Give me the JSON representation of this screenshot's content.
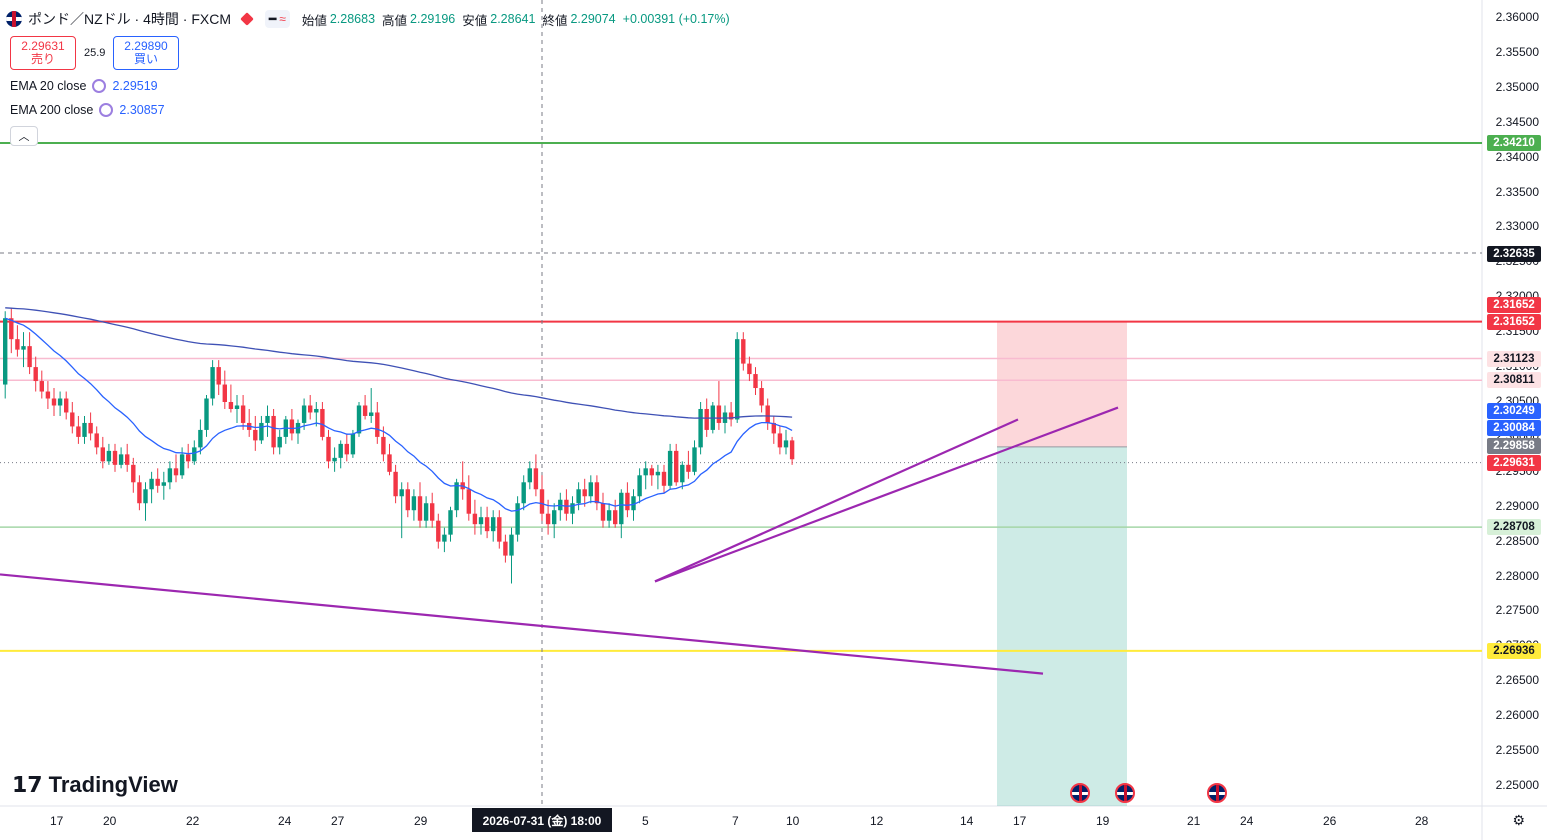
{
  "header": {
    "symbol_title": "ポンド／NZドル · 4時間 · FXCM",
    "badge_a": "━",
    "badge_b": "≈",
    "ohlc": [
      {
        "label": "始値",
        "value": "2.28683"
      },
      {
        "label": "高値",
        "value": "2.29196"
      },
      {
        "label": "安値",
        "value": "2.28641"
      },
      {
        "label": "終値",
        "value": "2.29074"
      }
    ],
    "change": "+0.00391 (+0.17%)"
  },
  "trade": {
    "sell_price": "2.29631",
    "sell_label": "売り",
    "spread": "25.9",
    "buy_price": "2.29890",
    "buy_label": "買い"
  },
  "indicators": [
    {
      "name": "EMA 20 close",
      "value": "2.29519"
    },
    {
      "name": "EMA 200 close",
      "value": "2.30857"
    }
  ],
  "logo_text": "TradingView",
  "crosshair_date": "2026-07-31 (金)   18:00",
  "colors": {
    "up": "#089981",
    "down": "#f23645",
    "ema20": "#2962ff",
    "ema200": "#3f51b5",
    "trend": "#9c27b0",
    "support": "#4caf50",
    "resistance": "#f23645",
    "yellow": "#ffeb3b"
  },
  "chart_data": {
    "type": "candlestick",
    "title": "ポンド／NZドル · 4時間 · FXCM",
    "y_range": [
      2.2475,
      2.3625
    ],
    "y_ticks": [
      "2.36000",
      "2.35500",
      "2.35000",
      "2.34500",
      "2.34000",
      "2.33500",
      "2.33000",
      "2.32500",
      "2.32000",
      "2.31500",
      "2.31000",
      "2.30500",
      "2.30000",
      "2.29500",
      "2.29000",
      "2.28500",
      "2.28000",
      "2.27500",
      "2.27000",
      "2.26500",
      "2.26000",
      "2.25500",
      "2.25000"
    ],
    "x_ticks": [
      "17",
      "20",
      "22",
      "24",
      "27",
      "29",
      "31",
      "5",
      "7",
      "10",
      "12",
      "14",
      "17",
      "19",
      "21",
      "24",
      "26",
      "28"
    ],
    "price_labels": [
      {
        "value": 2.3421,
        "text": "2.34210",
        "kind": "green"
      },
      {
        "value": 2.32635,
        "text": "2.32635",
        "kind": "dark"
      },
      {
        "value": 2.31652,
        "text": "2.31652",
        "kind": "red"
      },
      {
        "value": 2.31652,
        "text": "2.31652",
        "kind": "red"
      },
      {
        "value": 2.31123,
        "text": "2.31123",
        "kind": "pink"
      },
      {
        "value": 2.30811,
        "text": "2.30811",
        "kind": "pink"
      },
      {
        "value": 2.30249,
        "text": "2.30249",
        "kind": "blue"
      },
      {
        "value": 2.30084,
        "text": "2.30084",
        "kind": "blue"
      },
      {
        "value": 2.29858,
        "text": "2.29858",
        "kind": "gray"
      },
      {
        "value": 2.29631,
        "text": "2.29631",
        "kind": "red"
      },
      {
        "value": 2.28708,
        "text": "2.28708",
        "kind": "lightgreen"
      },
      {
        "value": 2.26936,
        "text": "2.26936",
        "kind": "yellow"
      }
    ],
    "hlines": [
      {
        "value": 2.3421,
        "style": "green"
      },
      {
        "value": 2.32635,
        "style": "dashed"
      },
      {
        "value": 2.31652,
        "style": "red"
      },
      {
        "value": 2.31123,
        "style": "pink"
      },
      {
        "value": 2.30811,
        "style": "pink"
      },
      {
        "value": 2.28708,
        "style": "lightgreen"
      },
      {
        "value": 2.26936,
        "style": "yellow"
      },
      {
        "value": 2.29631,
        "style": "dotted"
      }
    ],
    "position": {
      "entry": 2.29858,
      "stop": 2.31652,
      "target": 2.2475
    },
    "candles": [
      [
        2.3075,
        2.318,
        2.3055,
        2.317
      ],
      [
        2.317,
        2.3185,
        2.312,
        2.314
      ],
      [
        2.314,
        2.316,
        2.3115,
        2.3125
      ],
      [
        2.3125,
        2.315,
        2.31,
        2.313
      ],
      [
        2.313,
        2.315,
        2.309,
        2.31
      ],
      [
        2.31,
        2.3115,
        2.3065,
        2.308
      ],
      [
        2.308,
        2.3095,
        2.3055,
        2.3065
      ],
      [
        2.3065,
        2.308,
        2.304,
        2.3055
      ],
      [
        2.3055,
        2.307,
        2.303,
        2.3045
      ],
      [
        2.3045,
        2.3065,
        2.303,
        2.3055
      ],
      [
        2.3055,
        2.3065,
        2.3025,
        2.3035
      ],
      [
        2.3035,
        2.305,
        2.3005,
        2.3015
      ],
      [
        2.3015,
        2.303,
        2.299,
        2.3
      ],
      [
        2.3,
        2.303,
        2.299,
        2.302
      ],
      [
        2.302,
        2.3035,
        2.2995,
        2.3005
      ],
      [
        2.3005,
        2.3015,
        2.2975,
        2.2985
      ],
      [
        2.2985,
        2.3,
        2.2955,
        2.2965
      ],
      [
        2.2965,
        2.299,
        2.296,
        2.298
      ],
      [
        2.298,
        2.299,
        2.295,
        2.296
      ],
      [
        2.296,
        2.2985,
        2.2955,
        2.2975
      ],
      [
        2.2975,
        2.299,
        2.295,
        2.296
      ],
      [
        2.296,
        2.297,
        2.292,
        2.2935
      ],
      [
        2.2935,
        2.2945,
        2.2895,
        2.2905
      ],
      [
        2.2905,
        2.2935,
        2.288,
        2.2925
      ],
      [
        2.2925,
        2.295,
        2.2905,
        2.294
      ],
      [
        2.294,
        2.2955,
        2.292,
        2.293
      ],
      [
        2.293,
        2.295,
        2.291,
        2.2935
      ],
      [
        2.2935,
        2.2965,
        2.2925,
        2.2955
      ],
      [
        2.2955,
        2.2975,
        2.2935,
        2.2945
      ],
      [
        2.2945,
        2.2985,
        2.294,
        2.2975
      ],
      [
        2.2975,
        2.299,
        2.2955,
        2.2965
      ],
      [
        2.2965,
        2.2995,
        2.296,
        2.2985
      ],
      [
        2.2985,
        2.3025,
        2.2975,
        2.301
      ],
      [
        2.301,
        2.306,
        2.3,
        2.3055
      ],
      [
        2.3055,
        2.311,
        2.3045,
        2.31
      ],
      [
        2.31,
        2.311,
        2.306,
        2.3075
      ],
      [
        2.3075,
        2.3095,
        2.304,
        2.305
      ],
      [
        2.305,
        2.3075,
        2.3035,
        2.304
      ],
      [
        2.304,
        2.306,
        2.302,
        2.3045
      ],
      [
        2.3045,
        2.306,
        2.301,
        2.302
      ],
      [
        2.302,
        2.304,
        2.3,
        2.301
      ],
      [
        2.301,
        2.303,
        2.298,
        2.2995
      ],
      [
        2.2995,
        2.303,
        2.299,
        2.302
      ],
      [
        2.302,
        2.3045,
        2.3,
        2.303
      ],
      [
        2.303,
        2.304,
        2.2975,
        2.2985
      ],
      [
        2.2985,
        2.301,
        2.2975,
        2.3
      ],
      [
        2.3,
        2.303,
        2.299,
        2.3025
      ],
      [
        2.3025,
        2.304,
        2.2995,
        2.3005
      ],
      [
        2.3005,
        2.3025,
        2.299,
        2.302
      ],
      [
        2.302,
        2.3055,
        2.301,
        2.3045
      ],
      [
        2.3045,
        2.306,
        2.3025,
        2.3035
      ],
      [
        2.3035,
        2.305,
        2.3015,
        2.304
      ],
      [
        2.304,
        2.305,
        2.2995,
        2.3
      ],
      [
        2.3,
        2.301,
        2.2955,
        2.2965
      ],
      [
        2.2965,
        2.2985,
        2.295,
        2.297
      ],
      [
        2.297,
        2.2995,
        2.2955,
        2.299
      ],
      [
        2.299,
        2.3005,
        2.2965,
        2.2975
      ],
      [
        2.2975,
        2.301,
        2.297,
        2.3005
      ],
      [
        2.3005,
        2.305,
        2.3,
        2.3045
      ],
      [
        2.3045,
        2.306,
        2.3025,
        2.303
      ],
      [
        2.303,
        2.307,
        2.302,
        2.3035
      ],
      [
        2.3035,
        2.305,
        2.299,
        2.3
      ],
      [
        2.3,
        2.3015,
        2.2965,
        2.2975
      ],
      [
        2.2975,
        2.299,
        2.2945,
        2.295
      ],
      [
        2.295,
        2.296,
        2.2905,
        2.2915
      ],
      [
        2.2915,
        2.2935,
        2.2855,
        2.2925
      ],
      [
        2.2925,
        2.2935,
        2.2885,
        2.2895
      ],
      [
        2.2895,
        2.2925,
        2.288,
        2.2915
      ],
      [
        2.2915,
        2.2935,
        2.287,
        2.288
      ],
      [
        2.288,
        2.2915,
        2.287,
        2.2905
      ],
      [
        2.2905,
        2.292,
        2.287,
        2.288
      ],
      [
        2.288,
        2.289,
        2.284,
        2.285
      ],
      [
        2.285,
        2.287,
        2.2835,
        2.286
      ],
      [
        2.286,
        2.29,
        2.285,
        2.2895
      ],
      [
        2.2895,
        2.294,
        2.2885,
        2.2935
      ],
      [
        2.2935,
        2.2965,
        2.291,
        2.2925
      ],
      [
        2.2925,
        2.2945,
        2.288,
        2.289
      ],
      [
        2.289,
        2.291,
        2.286,
        2.2875
      ],
      [
        2.2875,
        2.29,
        2.286,
        2.2885
      ],
      [
        2.2885,
        2.29,
        2.2855,
        2.2865
      ],
      [
        2.2865,
        2.2895,
        2.285,
        2.2885
      ],
      [
        2.2885,
        2.2895,
        2.284,
        2.285
      ],
      [
        2.285,
        2.286,
        2.282,
        2.283
      ],
      [
        2.283,
        2.287,
        2.279,
        2.286
      ],
      [
        2.286,
        2.2915,
        2.285,
        2.2905
      ],
      [
        2.2905,
        2.2945,
        2.2895,
        2.2935
      ],
      [
        2.2935,
        2.2965,
        2.2925,
        2.2955
      ],
      [
        2.2955,
        2.2975,
        2.2915,
        2.2925
      ],
      [
        2.2925,
        2.2945,
        2.288,
        2.289
      ],
      [
        2.289,
        2.291,
        2.286,
        2.2875
      ],
      [
        2.2875,
        2.2905,
        2.2855,
        2.2895
      ],
      [
        2.2895,
        2.292,
        2.288,
        2.291
      ],
      [
        2.291,
        2.2925,
        2.288,
        2.289
      ],
      [
        2.289,
        2.2915,
        2.2875,
        2.2905
      ],
      [
        2.2905,
        2.2935,
        2.2895,
        2.2925
      ],
      [
        2.2925,
        2.294,
        2.29,
        2.2915
      ],
      [
        2.2915,
        2.2945,
        2.2905,
        2.2935
      ],
      [
        2.2935,
        2.2945,
        2.2895,
        2.2905
      ],
      [
        2.2905,
        2.292,
        2.287,
        2.288
      ],
      [
        2.288,
        2.2905,
        2.287,
        2.2895
      ],
      [
        2.2895,
        2.291,
        2.287,
        2.2875
      ],
      [
        2.2875,
        2.2925,
        2.2855,
        2.292
      ],
      [
        2.292,
        2.2935,
        2.2885,
        2.2895
      ],
      [
        2.2895,
        2.2925,
        2.288,
        2.2915
      ],
      [
        2.2915,
        2.2955,
        2.2905,
        2.2945
      ],
      [
        2.2945,
        2.2965,
        2.2925,
        2.2955
      ],
      [
        2.2955,
        2.296,
        2.293,
        2.2945
      ],
      [
        2.2945,
        2.296,
        2.2925,
        2.295
      ],
      [
        2.295,
        2.296,
        2.292,
        2.293
      ],
      [
        2.293,
        2.299,
        2.2925,
        2.298
      ],
      [
        2.298,
        2.299,
        2.293,
        2.2935
      ],
      [
        2.2935,
        2.2965,
        2.2925,
        2.296
      ],
      [
        2.296,
        2.298,
        2.294,
        2.295
      ],
      [
        2.295,
        2.2995,
        2.2945,
        2.2985
      ],
      [
        2.2985,
        2.305,
        2.2975,
        2.304
      ],
      [
        2.304,
        2.3055,
        2.3,
        2.301
      ],
      [
        2.301,
        2.305,
        2.3005,
        2.3045
      ],
      [
        2.3045,
        2.308,
        2.301,
        2.302
      ],
      [
        2.302,
        2.3045,
        2.3005,
        2.3035
      ],
      [
        2.3035,
        2.305,
        2.3015,
        2.3025
      ],
      [
        2.3025,
        2.315,
        2.302,
        2.314
      ],
      [
        2.314,
        2.315,
        2.3095,
        2.3105
      ],
      [
        2.3105,
        2.3115,
        2.308,
        2.309
      ],
      [
        2.309,
        2.31,
        2.306,
        2.307
      ],
      [
        2.307,
        2.308,
        2.3035,
        2.3045
      ],
      [
        2.3045,
        2.3055,
        2.301,
        2.302
      ],
      [
        2.302,
        2.303,
        2.299,
        2.3005
      ],
      [
        2.3005,
        2.3015,
        2.2975,
        2.2985
      ],
      [
        2.2985,
        2.301,
        2.2975,
        2.2995
      ],
      [
        2.2995,
        2.3,
        2.296,
        2.2968
      ]
    ],
    "ema20": "2.29519",
    "ema200": "2.30857"
  }
}
